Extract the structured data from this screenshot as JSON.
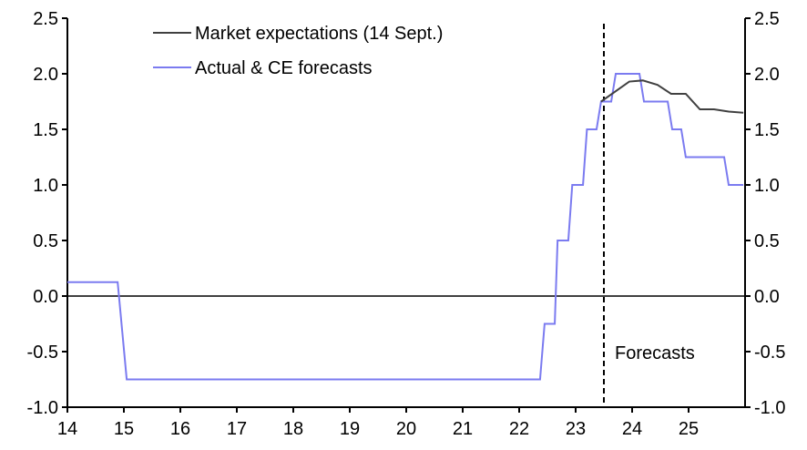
{
  "chart_data": {
    "type": "line",
    "title": "",
    "xlabel": "",
    "ylabel": "",
    "xlim": [
      14,
      26
    ],
    "ylim": [
      -1.0,
      2.5
    ],
    "x_ticks": [
      "14",
      "15",
      "16",
      "17",
      "18",
      "19",
      "20",
      "21",
      "22",
      "23",
      "24",
      "25"
    ],
    "y_ticks": [
      "-1.0",
      "-0.5",
      "0.0",
      "0.5",
      "1.0",
      "1.5",
      "2.0",
      "2.5"
    ],
    "forecast_line_x": 23.5,
    "annotation": "Forecasts",
    "legend_position": "top-left",
    "series": [
      {
        "name": "Market expectations (14 Sept.)",
        "color": "#404040",
        "x": [
          23.45,
          23.95,
          24.19,
          24.45,
          24.69,
          24.95,
          25.2,
          25.45,
          25.71,
          25.97
        ],
        "y": [
          1.75,
          1.93,
          1.94,
          1.9,
          1.82,
          1.82,
          1.68,
          1.68,
          1.66,
          1.65
        ]
      },
      {
        "name": "Actual & CE forecasts",
        "color": "#7b7bf0",
        "x": [
          14.0,
          14.89,
          15.05,
          22.37,
          22.45,
          22.63,
          22.68,
          22.87,
          22.94,
          23.13,
          23.2,
          23.37,
          23.45,
          23.63,
          23.71,
          24.13,
          24.21,
          24.63,
          24.71,
          24.87,
          24.95,
          25.63,
          25.71,
          25.97
        ],
        "y": [
          0.125,
          0.125,
          -0.75,
          -0.75,
          -0.25,
          -0.25,
          0.5,
          0.5,
          1.0,
          1.0,
          1.5,
          1.5,
          1.75,
          1.75,
          2.0,
          2.0,
          1.75,
          1.75,
          1.5,
          1.5,
          1.25,
          1.25,
          1.0,
          1.0
        ]
      }
    ]
  }
}
